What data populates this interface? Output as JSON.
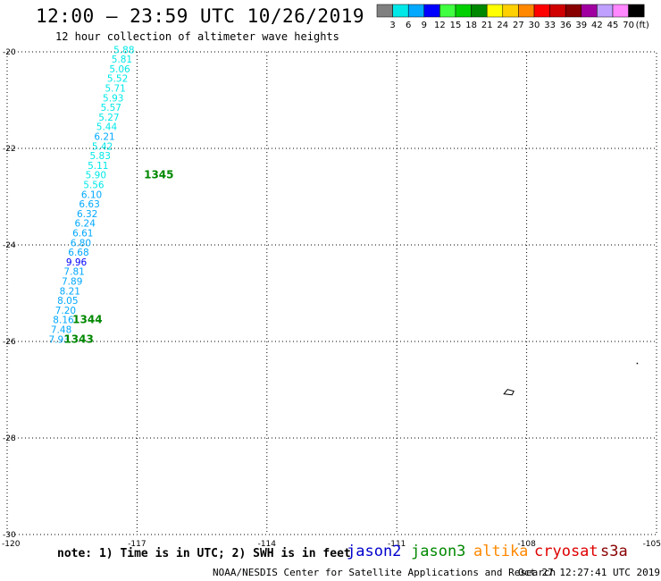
{
  "header": {
    "title": "12:00 – 23:59 UTC 10/26/2019",
    "subtitle": "12 hour collection of altimeter wave heights"
  },
  "legend": {
    "unit": "(ft)",
    "bins": [
      {
        "label": "3",
        "color": "#808080"
      },
      {
        "label": "6",
        "color": "#00e8e8"
      },
      {
        "label": "9",
        "color": "#00a8ff"
      },
      {
        "label": "12",
        "color": "#0000ff"
      },
      {
        "label": "15",
        "color": "#40ff40"
      },
      {
        "label": "18",
        "color": "#00d000"
      },
      {
        "label": "21",
        "color": "#008800"
      },
      {
        "label": "24",
        "color": "#ffff00"
      },
      {
        "label": "27",
        "color": "#ffd000"
      },
      {
        "label": "30",
        "color": "#ff8800"
      },
      {
        "label": "33",
        "color": "#ff0000"
      },
      {
        "label": "36",
        "color": "#d00000"
      },
      {
        "label": "39",
        "color": "#880000"
      },
      {
        "label": "42",
        "color": "#a000a0"
      },
      {
        "label": "45",
        "color": "#c0a0ff"
      },
      {
        "label": "70",
        "color": "#ff88ff"
      },
      {
        "label": "",
        "color": "#000000"
      }
    ]
  },
  "axes": {
    "lon_range": [
      -120,
      -105
    ],
    "lat_range": [
      -30,
      -20
    ],
    "lon_ticks": [
      {
        "value": -120,
        "label": "-120"
      },
      {
        "value": -117,
        "label": "-117"
      },
      {
        "value": -114,
        "label": "-114"
      },
      {
        "value": -111,
        "label": "-111"
      },
      {
        "value": -108,
        "label": "-108"
      },
      {
        "value": -105,
        "label": "-105"
      }
    ],
    "lat_ticks": [
      {
        "value": -20,
        "label": "-20"
      },
      {
        "value": -22,
        "label": "-22"
      },
      {
        "value": -24,
        "label": "-24"
      },
      {
        "value": -26,
        "label": "-26"
      },
      {
        "value": -28,
        "label": "-28"
      },
      {
        "value": -30,
        "label": "-30"
      }
    ],
    "grid": "dotted"
  },
  "track": {
    "satellite": "jason3",
    "label_color": "#008800",
    "points": [
      {
        "lon": -117.3,
        "lat": -19.95,
        "swh": "5.88",
        "color": "#00e8e8"
      },
      {
        "lon": -117.35,
        "lat": -20.15,
        "swh": "5.81",
        "color": "#00e8e8"
      },
      {
        "lon": -117.4,
        "lat": -20.35,
        "swh": "5.06",
        "color": "#00e8e8"
      },
      {
        "lon": -117.45,
        "lat": -20.55,
        "swh": "5.52",
        "color": "#00e8e8"
      },
      {
        "lon": -117.5,
        "lat": -20.75,
        "swh": "5.71",
        "color": "#00e8e8"
      },
      {
        "lon": -117.55,
        "lat": -20.95,
        "swh": "5.93",
        "color": "#00e8e8"
      },
      {
        "lon": -117.6,
        "lat": -21.15,
        "swh": "5.57",
        "color": "#00e8e8"
      },
      {
        "lon": -117.65,
        "lat": -21.35,
        "swh": "5.27",
        "color": "#00e8e8"
      },
      {
        "lon": -117.7,
        "lat": -21.55,
        "swh": "5.44",
        "color": "#00e8e8"
      },
      {
        "lon": -117.75,
        "lat": -21.75,
        "swh": "6.21",
        "color": "#00a8ff"
      },
      {
        "lon": -117.8,
        "lat": -21.95,
        "swh": "5.42",
        "color": "#00e8e8"
      },
      {
        "lon": -117.85,
        "lat": -22.15,
        "swh": "5.83",
        "color": "#00e8e8"
      },
      {
        "lon": -117.9,
        "lat": -22.35,
        "swh": "5.11",
        "color": "#00e8e8"
      },
      {
        "lon": -117.95,
        "lat": -22.55,
        "swh": "5.90",
        "color": "#00e8e8"
      },
      {
        "lon": -118.0,
        "lat": -22.75,
        "swh": "5.56",
        "color": "#00e8e8"
      },
      {
        "lon": -118.05,
        "lat": -22.95,
        "swh": "6.10",
        "color": "#00a8ff"
      },
      {
        "lon": -118.1,
        "lat": -23.15,
        "swh": "6.63",
        "color": "#00a8ff"
      },
      {
        "lon": -118.15,
        "lat": -23.35,
        "swh": "6.32",
        "color": "#00a8ff"
      },
      {
        "lon": -118.2,
        "lat": -23.55,
        "swh": "6.24",
        "color": "#00a8ff"
      },
      {
        "lon": -118.25,
        "lat": -23.75,
        "swh": "6.61",
        "color": "#00a8ff"
      },
      {
        "lon": -118.3,
        "lat": -23.95,
        "swh": "6.80",
        "color": "#00a8ff"
      },
      {
        "lon": -118.35,
        "lat": -24.15,
        "swh": "6.68",
        "color": "#00a8ff"
      },
      {
        "lon": -118.4,
        "lat": -24.35,
        "swh": "9.96",
        "color": "#0000ff"
      },
      {
        "lon": -118.45,
        "lat": -24.55,
        "swh": "7.81",
        "color": "#00a8ff"
      },
      {
        "lon": -118.5,
        "lat": -24.75,
        "swh": "7.89",
        "color": "#00a8ff"
      },
      {
        "lon": -118.55,
        "lat": -24.95,
        "swh": "8.21",
        "color": "#00a8ff"
      },
      {
        "lon": -118.6,
        "lat": -25.15,
        "swh": "8.05",
        "color": "#00a8ff"
      },
      {
        "lon": -118.65,
        "lat": -25.35,
        "swh": "7.20",
        "color": "#00a8ff"
      },
      {
        "lon": -118.7,
        "lat": -25.55,
        "swh": "8.16",
        "color": "#00a8ff"
      },
      {
        "lon": -118.75,
        "lat": -25.75,
        "swh": "7.48",
        "color": "#00a8ff"
      },
      {
        "lon": -118.8,
        "lat": -25.95,
        "swh": "7.93",
        "color": "#00a8ff"
      }
    ],
    "time_labels": [
      {
        "lon": -116.95,
        "lat": -22.55,
        "text": "1345"
      },
      {
        "lon": -118.6,
        "lat": -25.55,
        "text": "1344"
      },
      {
        "lon": -118.8,
        "lat": -25.95,
        "text": "1343"
      }
    ]
  },
  "islands": [
    {
      "name": "",
      "lon": -108.4,
      "lat": -27.05
    },
    {
      "name": "",
      "lon": -105.45,
      "lat": -26.45
    }
  ],
  "footer": {
    "note": "note: 1) Time is in UTC; 2) SWH is in feet",
    "credit": "NOAA/NESDIS Center for Satellite Applications and Research",
    "generated": "Oct 27 12:27:41 UTC 2019",
    "satellites": [
      {
        "name": "jason2",
        "color": "#0000cc"
      },
      {
        "name": "jason3",
        "color": "#008800"
      },
      {
        "name": "altika",
        "color": "#ff8800"
      },
      {
        "name": "cryosat",
        "color": "#dd0000"
      },
      {
        "name": "s3a",
        "color": "#880000"
      }
    ]
  }
}
